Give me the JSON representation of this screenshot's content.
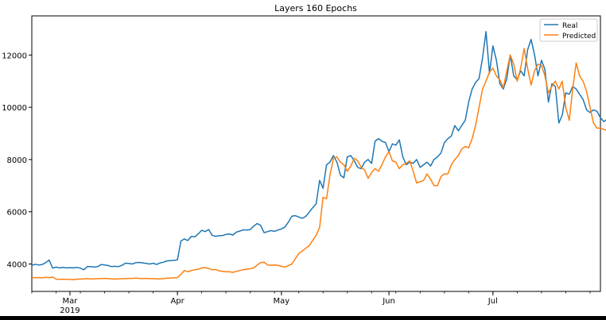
{
  "chart_data": {
    "type": "line",
    "title": "Layers 160 Epochs",
    "xlabel": "",
    "ylabel": "",
    "x_start": "2019-02-18",
    "xlim": [
      "2019-02-18",
      "2019-08-01"
    ],
    "ylim": [
      2950,
      13500
    ],
    "x_ticks": [
      {
        "date": "2019-03-01",
        "label": "Mar",
        "sublabel": "2019"
      },
      {
        "date": "2019-04-01",
        "label": "Apr",
        "sublabel": ""
      },
      {
        "date": "2019-05-01",
        "label": "May",
        "sublabel": ""
      },
      {
        "date": "2019-06-01",
        "label": "Jun",
        "sublabel": ""
      },
      {
        "date": "2019-07-01",
        "label": "Jul",
        "sublabel": ""
      }
    ],
    "y_ticks": [
      4000,
      6000,
      8000,
      10000,
      12000
    ],
    "y_tick_labels": [
      "4000",
      "6000",
      "8000",
      "10000",
      "12000"
    ],
    "grid": false,
    "legend_position": "top-right",
    "series": [
      {
        "name": "Real",
        "color": "#1f77b4",
        "values": [
          3950,
          3990,
          3960,
          3980,
          4050,
          4150,
          3840,
          3880,
          3850,
          3870,
          3850,
          3860,
          3850,
          3870,
          3840,
          3780,
          3900,
          3900,
          3880,
          3900,
          3980,
          3960,
          3940,
          3900,
          3910,
          3900,
          3950,
          4030,
          4020,
          4000,
          4050,
          4060,
          4040,
          4020,
          4000,
          4030,
          3980,
          4040,
          4070,
          4120,
          4130,
          4140,
          4160,
          4880,
          4960,
          4900,
          5060,
          5040,
          5150,
          5290,
          5240,
          5320,
          5100,
          5060,
          5080,
          5090,
          5130,
          5150,
          5110,
          5220,
          5260,
          5310,
          5300,
          5320,
          5450,
          5550,
          5480,
          5200,
          5240,
          5280,
          5250,
          5300,
          5340,
          5420,
          5600,
          5830,
          5850,
          5800,
          5750,
          5820,
          5980,
          6150,
          6300,
          7200,
          6900,
          7800,
          7900,
          8150,
          7900,
          7400,
          7300,
          8100,
          8150,
          7950,
          7700,
          7650,
          7900,
          8000,
          7850,
          8700,
          8800,
          8700,
          8650,
          8300,
          8600,
          8550,
          8750,
          8100,
          7800,
          7900,
          7850,
          8000,
          7700,
          7800,
          7900,
          7750,
          8000,
          8100,
          8250,
          8650,
          8800,
          8900,
          9300,
          9100,
          9300,
          9500,
          10200,
          10700,
          10950,
          11100,
          11900,
          12900,
          11300,
          12350,
          11800,
          10900,
          10700,
          11100,
          12000,
          11200,
          11050,
          11400,
          11200,
          12200,
          12600,
          12000,
          11200,
          11800,
          11450,
          10200,
          10900,
          10800,
          9400,
          9700,
          10550,
          10500,
          10800,
          10700,
          10500,
          10300,
          9900,
          9800,
          9900,
          9850,
          9600,
          9450,
          9550
        ]
      },
      {
        "name": "Predicted",
        "color": "#ff7f0e",
        "values": [
          3470,
          3480,
          3480,
          3470,
          3490,
          3480,
          3500,
          3420,
          3410,
          3420,
          3410,
          3410,
          3400,
          3420,
          3420,
          3430,
          3440,
          3430,
          3430,
          3440,
          3440,
          3450,
          3440,
          3430,
          3420,
          3430,
          3440,
          3440,
          3450,
          3450,
          3460,
          3450,
          3440,
          3450,
          3440,
          3440,
          3430,
          3430,
          3440,
          3460,
          3460,
          3470,
          3480,
          3600,
          3750,
          3700,
          3750,
          3780,
          3800,
          3850,
          3860,
          3830,
          3780,
          3790,
          3740,
          3720,
          3700,
          3700,
          3680,
          3720,
          3750,
          3780,
          3800,
          3820,
          3850,
          3960,
          4050,
          4070,
          3960,
          3950,
          3960,
          3950,
          3910,
          3880,
          3940,
          4000,
          4200,
          4400,
          4500,
          4600,
          4700,
          4900,
          5100,
          5400,
          6550,
          6500,
          7400,
          8050,
          8100,
          7900,
          7800,
          7550,
          7750,
          8050,
          7950,
          7700,
          7600,
          7280,
          7500,
          7650,
          7550,
          7800,
          8100,
          8300,
          7950,
          7900,
          7650,
          7800,
          7850,
          7950,
          7550,
          7100,
          7150,
          7200,
          7450,
          7250,
          7000,
          7000,
          7350,
          7450,
          7450,
          7800,
          8000,
          8150,
          8400,
          8500,
          8450,
          8800,
          9300,
          10000,
          10700,
          11000,
          11350,
          11500,
          11200,
          11050,
          10750,
          11400,
          12000,
          11650,
          11000,
          11500,
          12250,
          11500,
          10850,
          11400,
          11650,
          11600,
          11200,
          10550,
          10800,
          11000,
          10700,
          11000,
          10000,
          9500,
          10700,
          11700,
          11200,
          11000,
          10600,
          10000,
          9400,
          9200,
          9200,
          9150,
          9100,
          8900
        ]
      }
    ]
  }
}
